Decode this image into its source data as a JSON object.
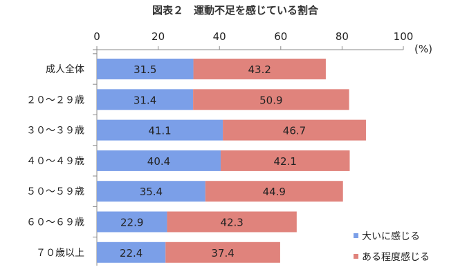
{
  "chart_data": {
    "type": "bar",
    "orientation": "horizontal",
    "stacked": true,
    "title": "図表２　運動不足を感じている割合",
    "unit_label": "(%)",
    "xlim": [
      0,
      100
    ],
    "x_ticks": [
      "0",
      "20",
      "40",
      "60",
      "80",
      "100"
    ],
    "x_axis_position": "top",
    "grid": false,
    "legend_position": "bottom-right",
    "categories": [
      "成人全体",
      "２０～２９歳",
      "３０～３９歳",
      "４０～４９歳",
      "５０～５９歳",
      "６０～６９歳",
      "７０歳以上"
    ],
    "series": [
      {
        "name": "大いに感じる",
        "color": "#7B9FE8",
        "values": [
          31.5,
          31.4,
          41.1,
          40.4,
          35.4,
          22.9,
          22.4
        ]
      },
      {
        "name": "ある程度感じる",
        "color": "#E0837C",
        "values": [
          43.2,
          50.9,
          46.7,
          42.1,
          44.9,
          42.3,
          37.4
        ]
      }
    ]
  }
}
